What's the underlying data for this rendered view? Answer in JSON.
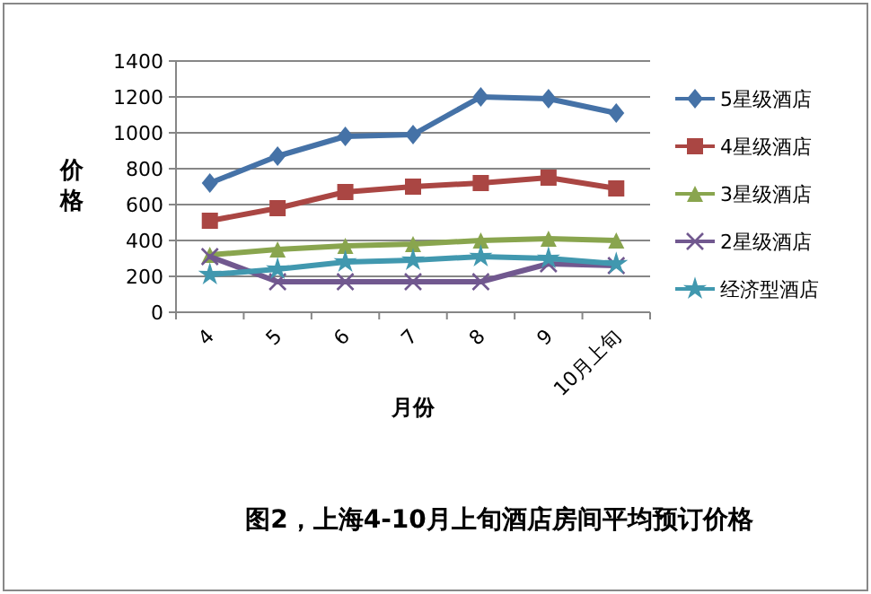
{
  "chart_data": {
    "type": "line",
    "title": "图2，上海4-10月上旬酒店房间平均预订价格",
    "xlabel": "月份",
    "ylabel": "价格",
    "categories": [
      "4",
      "5",
      "6",
      "7",
      "8",
      "9",
      "10月上旬"
    ],
    "ylim": [
      0,
      1400
    ],
    "yticks": [
      0,
      200,
      400,
      600,
      800,
      1000,
      1200,
      1400
    ],
    "grid": "y",
    "legend": "right",
    "series": [
      {
        "name": "5星级酒店",
        "color": "#4572a7",
        "marker": "diamond",
        "values": [
          720,
          870,
          980,
          990,
          1200,
          1190,
          1110
        ]
      },
      {
        "name": "4星级酒店",
        "color": "#aa4643",
        "marker": "square",
        "values": [
          510,
          580,
          670,
          700,
          720,
          750,
          690
        ]
      },
      {
        "name": "3星级酒店",
        "color": "#89a54e",
        "marker": "triangle",
        "values": [
          320,
          350,
          370,
          380,
          400,
          410,
          400
        ]
      },
      {
        "name": "2星级酒店",
        "color": "#71588f",
        "marker": "cross",
        "values": [
          310,
          170,
          170,
          170,
          170,
          270,
          260
        ]
      },
      {
        "name": "经济型酒店",
        "color": "#4198af",
        "marker": "star",
        "values": [
          210,
          240,
          280,
          290,
          310,
          300,
          270
        ]
      }
    ]
  }
}
